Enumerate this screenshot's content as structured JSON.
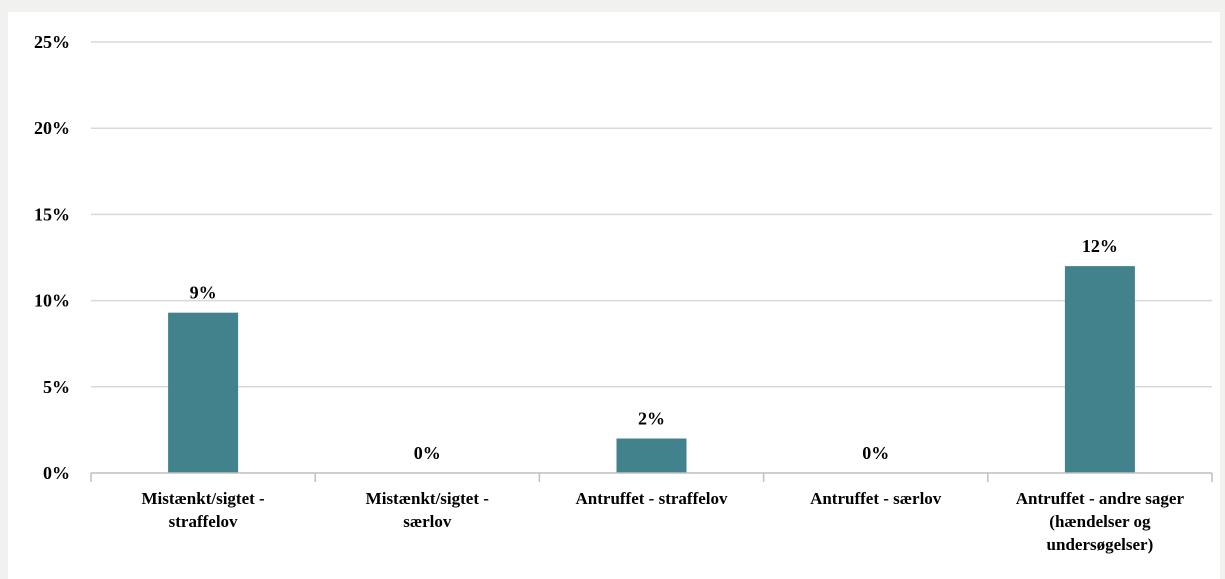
{
  "chart_data": {
    "type": "bar",
    "categories": [
      [
        "Mistænkt/sigtet -",
        "straffelov"
      ],
      [
        "Mistænkt/sigtet -",
        "særlov"
      ],
      [
        "Antruffet - straffelov"
      ],
      [
        "Antruffet - særlov"
      ],
      [
        "Antruffet - andre sager",
        "(hændelser og",
        "undersøgelser)"
      ]
    ],
    "values": [
      9.3,
      0,
      2.0,
      0,
      12.0
    ],
    "data_labels": [
      "9%",
      "0%",
      "2%",
      "0%",
      "12%"
    ],
    "ylim": [
      0,
      25
    ],
    "yticks": [
      0,
      5,
      10,
      15,
      20,
      25
    ],
    "ytick_labels": [
      "0%",
      "5%",
      "10%",
      "15%",
      "20%",
      "25%"
    ],
    "title": "",
    "xlabel": "",
    "ylabel": "",
    "grid": true,
    "colors": {
      "bar": "#41828c",
      "grid": "#d9d9d9",
      "axis": "#bfbfbf"
    }
  }
}
